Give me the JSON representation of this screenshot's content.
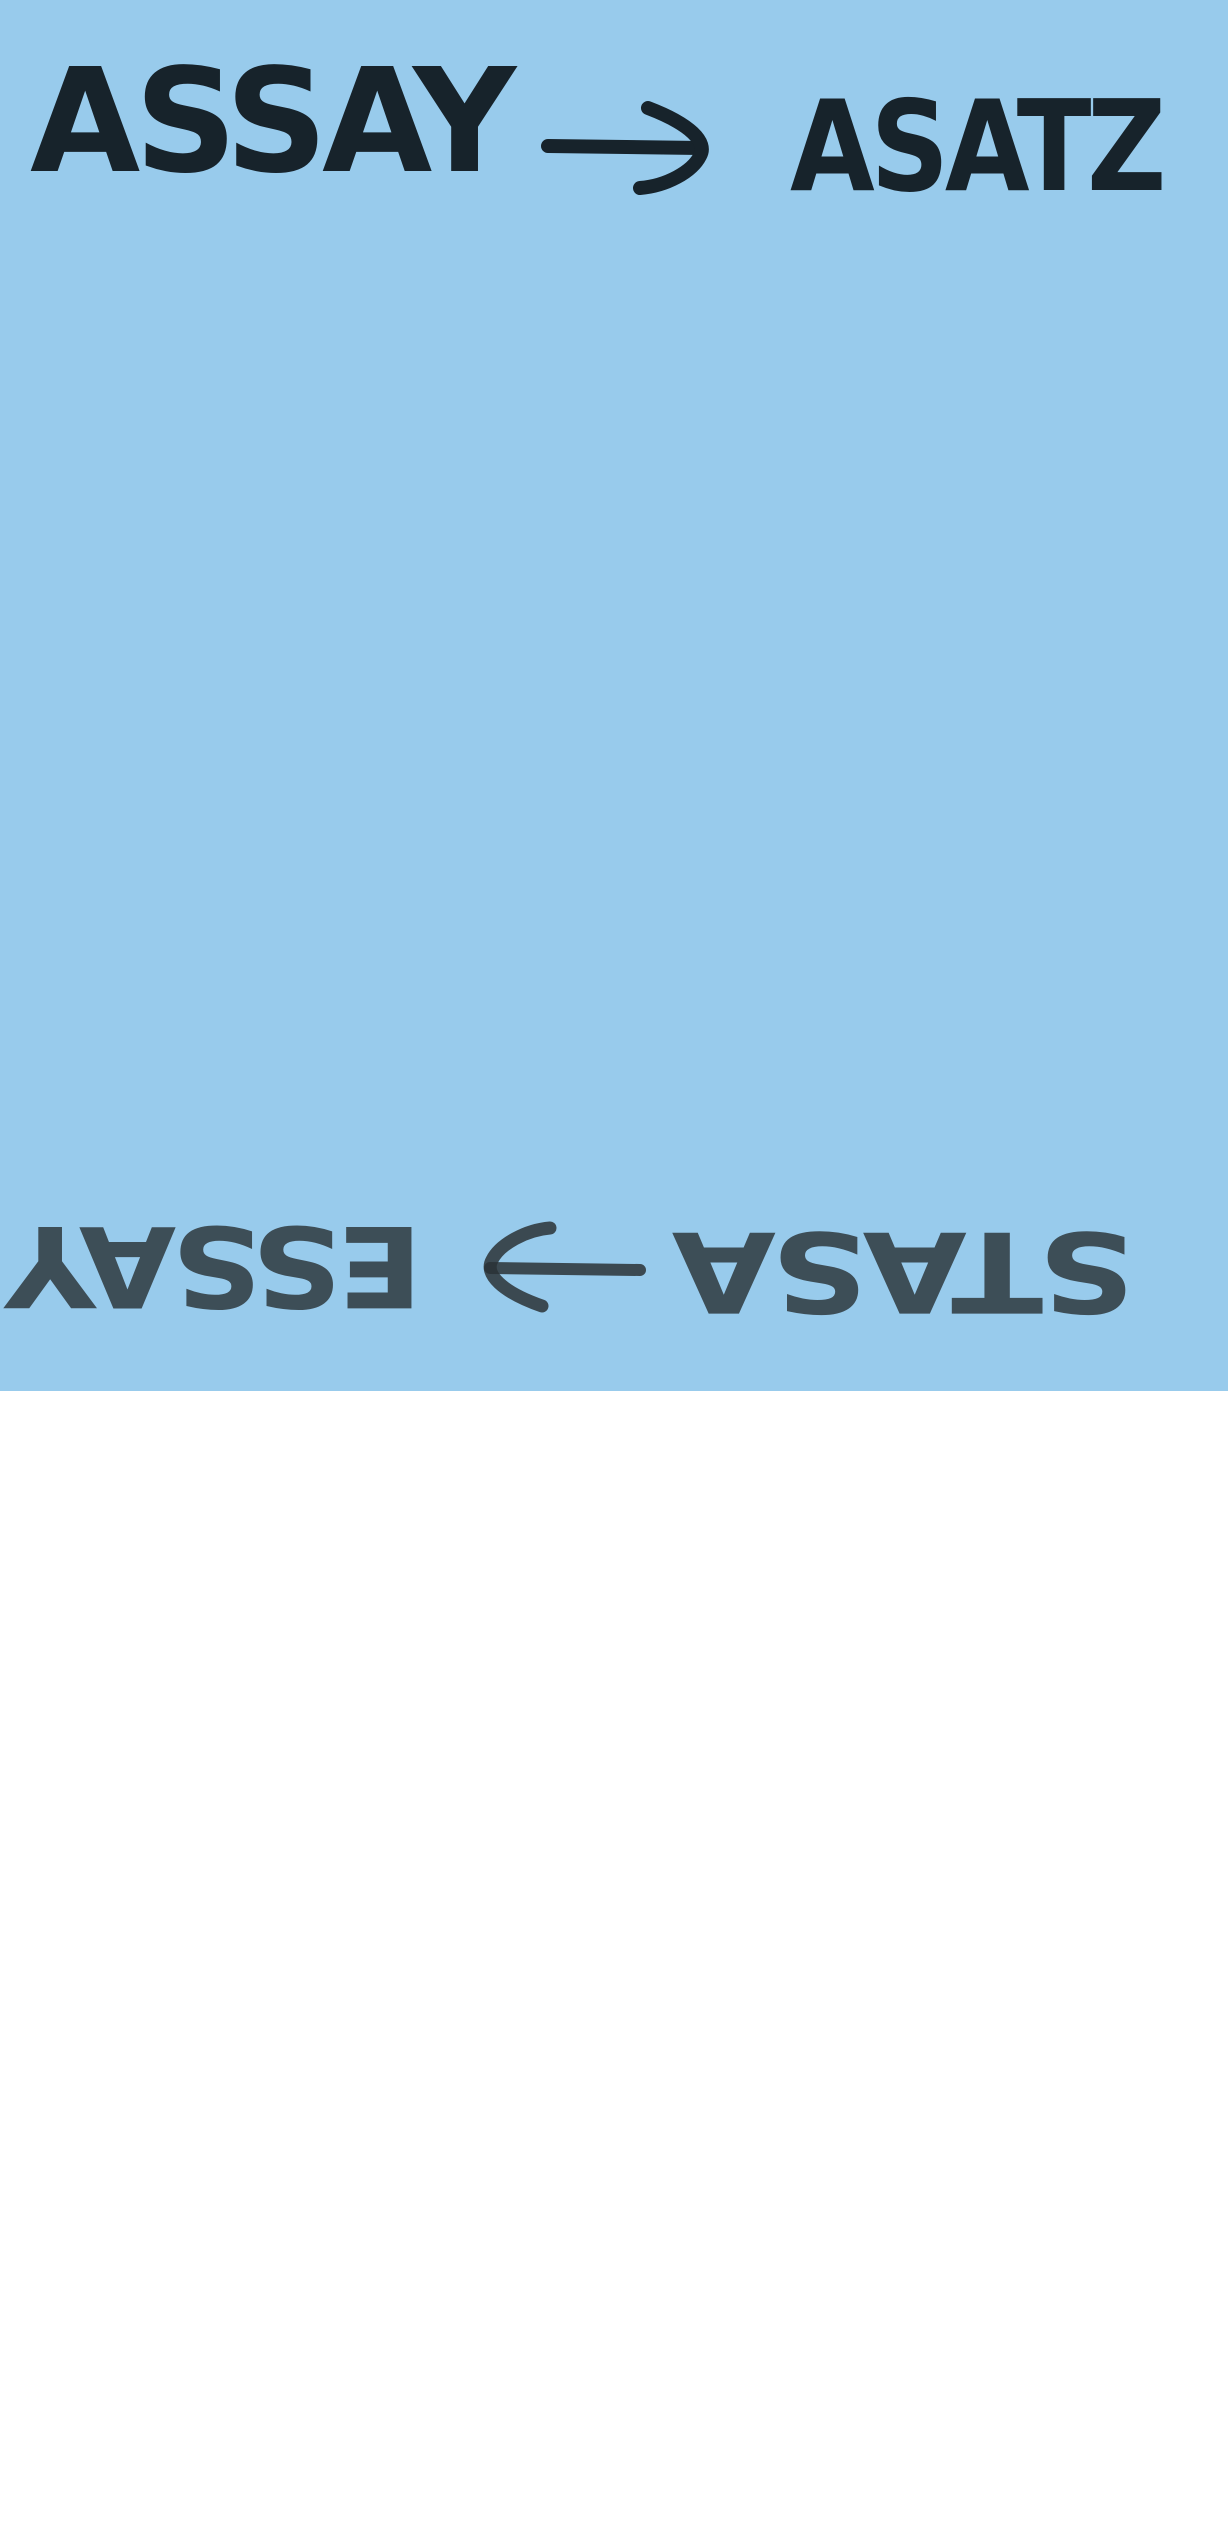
{
  "card": {
    "background_color": "#98cbec",
    "ink_color": "#17232b",
    "faded_ink_color": "#2a3236"
  },
  "top_line": {
    "left_word": "ASSAY",
    "arrow": "right-arrow",
    "right_word": "ASATZ"
  },
  "bottom_line_upside_down": {
    "left_word": "STASA",
    "arrow": "right-arrow",
    "right_word": "ESSAY"
  }
}
